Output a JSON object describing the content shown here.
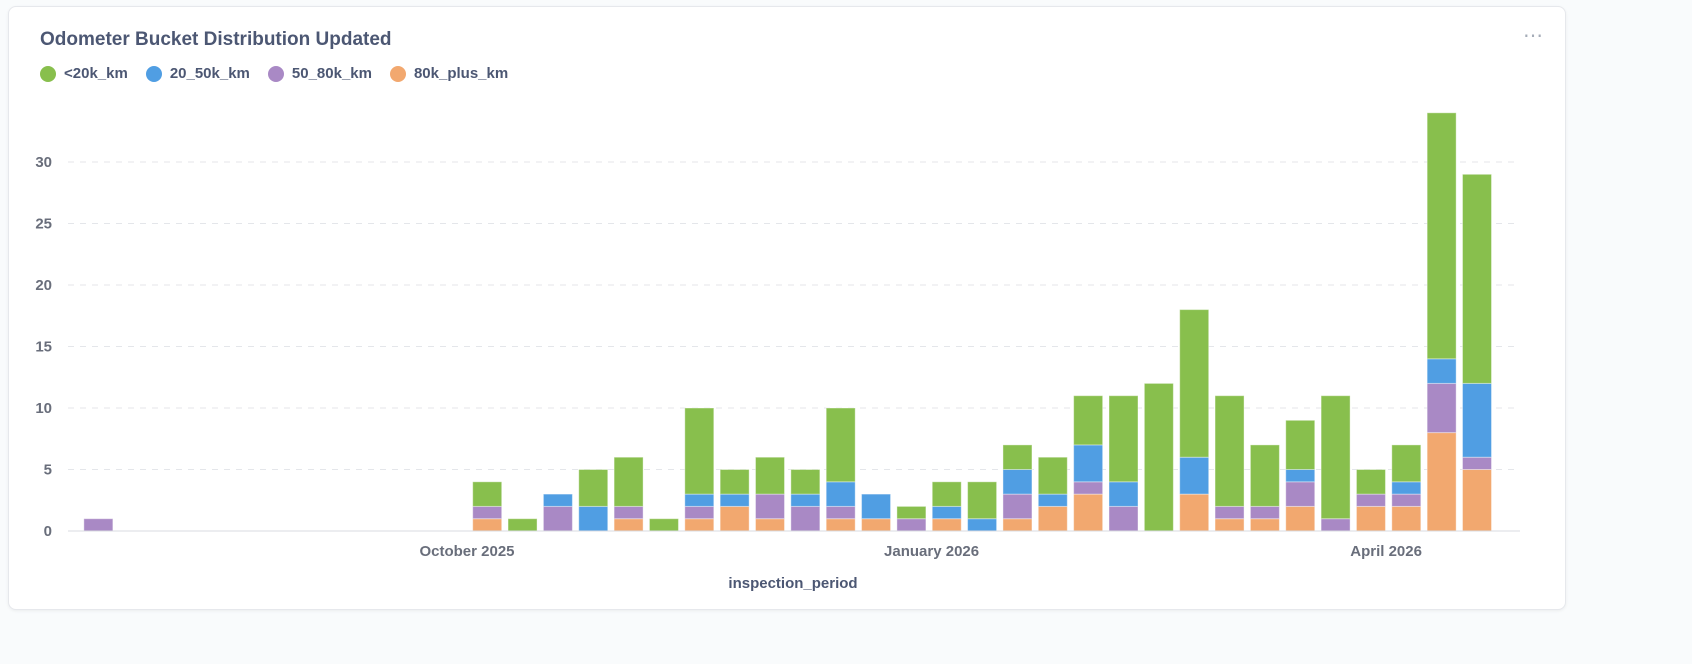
{
  "card": {
    "title": "Odometer Bucket Distribution Updated",
    "menu_icon": "ellipsis-icon"
  },
  "chart_data": {
    "type": "bar",
    "stacked": true,
    "title": "Odometer Bucket Distribution Updated",
    "xlabel": "inspection_period",
    "ylabel": "",
    "ylim": [
      0,
      34
    ],
    "yticks": [
      0,
      5,
      10,
      15,
      20,
      25,
      30
    ],
    "xtick_labels": [
      {
        "date": "2025-10-01",
        "label": "October 2025"
      },
      {
        "date": "2026-01-01",
        "label": "January 2026"
      },
      {
        "date": "2026-04-01",
        "label": "April 2026"
      }
    ],
    "grid": "horizontal dashed",
    "legend": "top-left",
    "x": [
      "2025-07-20",
      "2025-10-05",
      "2025-10-12",
      "2025-10-19",
      "2025-10-26",
      "2025-11-02",
      "2025-11-09",
      "2025-11-16",
      "2025-11-23",
      "2025-11-30",
      "2025-12-07",
      "2025-12-14",
      "2025-12-21",
      "2025-12-28",
      "2026-01-04",
      "2026-01-11",
      "2026-01-18",
      "2026-01-25",
      "2026-02-01",
      "2026-02-08",
      "2026-02-15",
      "2026-02-22",
      "2026-03-01",
      "2026-03-08",
      "2026-03-15",
      "2026-03-22",
      "2026-03-29",
      "2026-04-05",
      "2026-04-12",
      "2026-04-19"
    ],
    "series": [
      {
        "name": "80k_plus_km",
        "color": "#f2a86f",
        "values": [
          0,
          1,
          0,
          0,
          0,
          1,
          0,
          1,
          2,
          1,
          0,
          1,
          1,
          0,
          1,
          0,
          1,
          2,
          3,
          0,
          0,
          3,
          1,
          1,
          2,
          0,
          2,
          2,
          8,
          5
        ]
      },
      {
        "name": "50_80k_km",
        "color": "#a989c5",
        "values": [
          1,
          1,
          0,
          2,
          0,
          1,
          0,
          1,
          0,
          2,
          2,
          1,
          0,
          1,
          0,
          0,
          2,
          0,
          1,
          2,
          0,
          0,
          1,
          1,
          2,
          1,
          1,
          1,
          4,
          1
        ]
      },
      {
        "name": "20_50k_km",
        "color": "#509ee3",
        "values": [
          0,
          0,
          0,
          1,
          2,
          0,
          0,
          1,
          1,
          0,
          1,
          2,
          2,
          0,
          1,
          1,
          2,
          1,
          3,
          2,
          0,
          3,
          0,
          0,
          1,
          0,
          0,
          1,
          2,
          6
        ]
      },
      {
        "name": "<20k_km",
        "color": "#88bf4d",
        "values": [
          0,
          2,
          1,
          0,
          3,
          4,
          1,
          7,
          2,
          3,
          2,
          6,
          0,
          1,
          2,
          3,
          2,
          3,
          4,
          7,
          12,
          12,
          9,
          5,
          4,
          10,
          2,
          3,
          20,
          17
        ]
      }
    ],
    "legend_order": [
      "<20k_km",
      "20_50k_km",
      "50_80k_km",
      "80k_plus_km"
    ]
  }
}
